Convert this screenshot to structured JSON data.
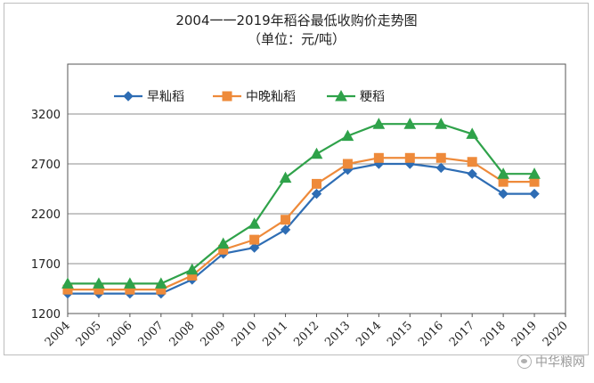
{
  "chart_data": {
    "type": "line",
    "title": "2004一一2019年稻谷最低收购价走势图",
    "subtitle": "（单位：元/吨）",
    "x": [
      "2004",
      "2005",
      "2006",
      "2007",
      "2008",
      "2009",
      "2010",
      "2011",
      "2012",
      "2013",
      "2014",
      "2015",
      "2016",
      "2017",
      "2018",
      "2019",
      "2020"
    ],
    "ylim": [
      1200,
      3700
    ],
    "yticks": [
      1200,
      1700,
      2200,
      2700,
      3200
    ],
    "grid": true,
    "legend_position": "top-left",
    "series": [
      {
        "name": "早籼稻",
        "color": "#2e6db4",
        "marker": "diamond",
        "values": [
          1400,
          1400,
          1400,
          1400,
          1540,
          1800,
          1860,
          2040,
          2400,
          2640,
          2700,
          2700,
          2660,
          2600,
          2400,
          2400,
          null
        ]
      },
      {
        "name": "中晚籼稻",
        "color": "#ee8a3a",
        "marker": "square",
        "values": [
          1440,
          1440,
          1440,
          1440,
          1580,
          1840,
          1940,
          2140,
          2500,
          2700,
          2760,
          2760,
          2760,
          2720,
          2520,
          2520,
          null
        ]
      },
      {
        "name": "粳稻",
        "color": "#2fa24a",
        "marker": "triangle",
        "values": [
          1500,
          1500,
          1500,
          1500,
          1640,
          1900,
          2100,
          2560,
          2800,
          2980,
          3100,
          3100,
          3100,
          3000,
          2600,
          2600,
          null
        ]
      }
    ]
  },
  "watermark": {
    "text": "中华粮网",
    "icon": "wechat-icon"
  }
}
